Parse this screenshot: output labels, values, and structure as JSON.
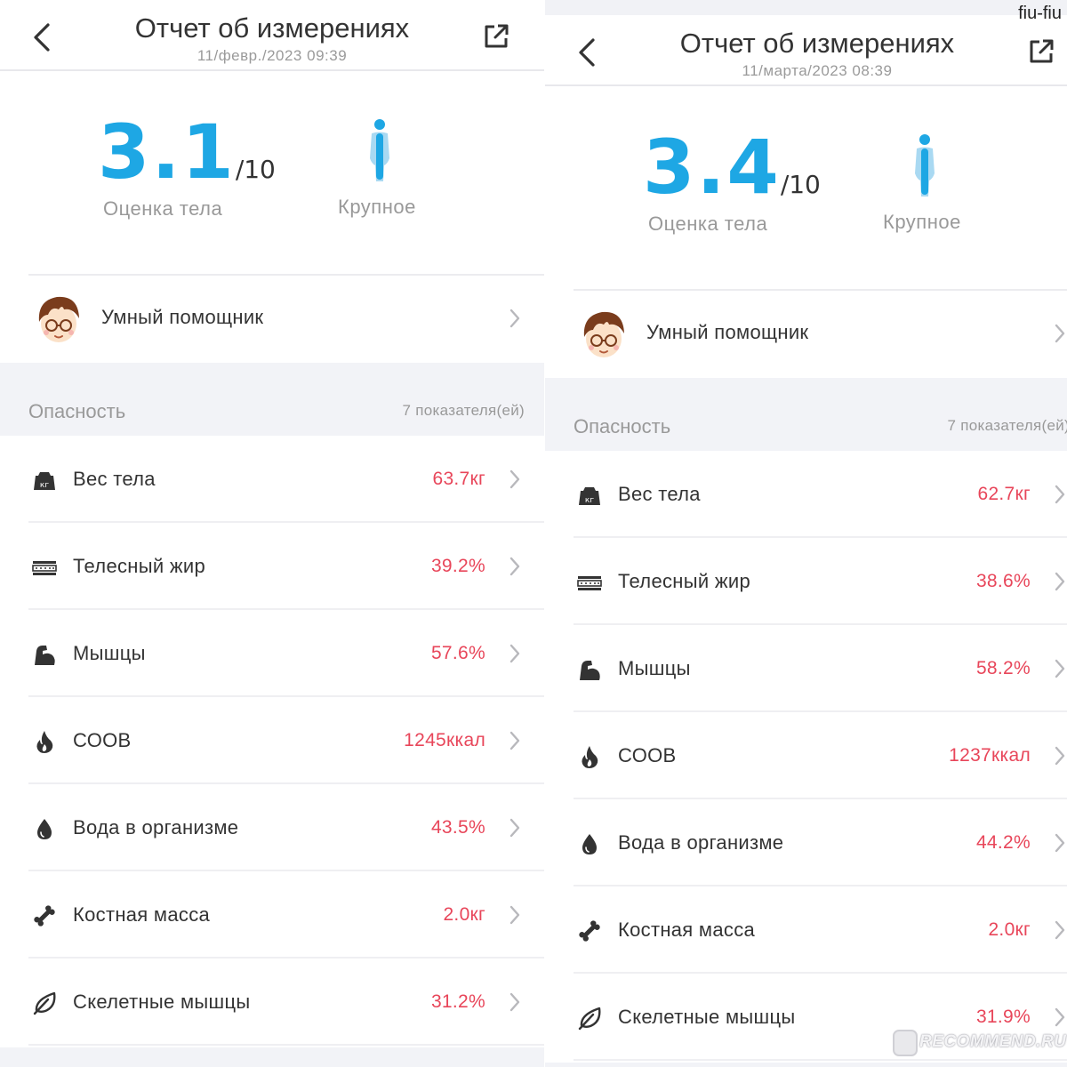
{
  "watermarks": {
    "top_right": "fiu-fiu",
    "bottom_right": "RECOMMEND.RU"
  },
  "colors": {
    "accent_blue": "#1ea7e4",
    "value_red": "#e8465a",
    "text_dark": "#333333",
    "text_muted": "#999999"
  },
  "reports": [
    {
      "header": {
        "title": "Отчет об измерениях",
        "date": "11/февр./2023 09:39"
      },
      "score": {
        "value": "3.1",
        "max": "/10",
        "label": "Оценка тела"
      },
      "body_type": {
        "label": "Крупное",
        "icon": "body-figure-icon"
      },
      "assistant": {
        "label": "Умный помощник"
      },
      "section": {
        "title": "Опасность",
        "count": "7 показателя(ей)"
      },
      "metrics": [
        {
          "icon": "weight-icon",
          "label": "Вес тела",
          "value": "63.7кг"
        },
        {
          "icon": "body-fat-icon",
          "label": "Телесный жир",
          "value": "39.2%"
        },
        {
          "icon": "muscle-icon",
          "label": "Мышцы",
          "value": "57.6%"
        },
        {
          "icon": "flame-icon",
          "label": "СООВ",
          "value": "1245ккал"
        },
        {
          "icon": "water-drop-icon",
          "label": "Вода в организме",
          "value": "43.5%"
        },
        {
          "icon": "bone-icon",
          "label": "Костная масса",
          "value": "2.0кг"
        },
        {
          "icon": "leaf-icon",
          "label": "Скелетные мышцы",
          "value": "31.2%"
        }
      ]
    },
    {
      "header": {
        "title": "Отчет об измерениях",
        "date": "11/марта/2023 08:39"
      },
      "score": {
        "value": "3.4",
        "max": "/10",
        "label": "Оценка тела"
      },
      "body_type": {
        "label": "Крупное",
        "icon": "body-figure-icon"
      },
      "assistant": {
        "label": "Умный помощник"
      },
      "section": {
        "title": "Опасность",
        "count": "7 показателя(ей)"
      },
      "metrics": [
        {
          "icon": "weight-icon",
          "label": "Вес тела",
          "value": "62.7кг"
        },
        {
          "icon": "body-fat-icon",
          "label": "Телесный жир",
          "value": "38.6%"
        },
        {
          "icon": "muscle-icon",
          "label": "Мышцы",
          "value": "58.2%"
        },
        {
          "icon": "flame-icon",
          "label": "СООВ",
          "value": "1237ккал"
        },
        {
          "icon": "water-drop-icon",
          "label": "Вода в организме",
          "value": "44.2%"
        },
        {
          "icon": "bone-icon",
          "label": "Костная масса",
          "value": "2.0кг"
        },
        {
          "icon": "leaf-icon",
          "label": "Скелетные мышцы",
          "value": "31.9%"
        }
      ]
    }
  ]
}
